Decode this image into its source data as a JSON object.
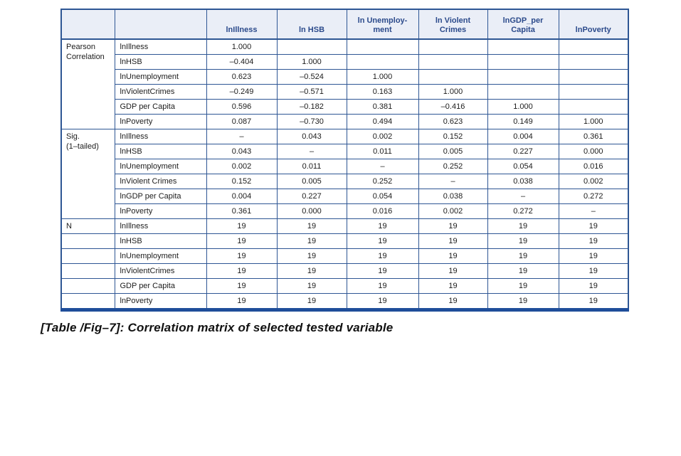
{
  "caption": "[Table /Fig–7]: Correlation matrix of selected tested variable",
  "colors": {
    "border_blue": "#2e5694",
    "thick_bottom_bar_blue": "#1f4e9a",
    "header_background": "#eaeef7",
    "header_text_blue": "#2b4a8b",
    "body_text": "#1c1c1c"
  },
  "table": {
    "column_headers": [
      "lnIllness",
      "ln HSB",
      "ln Unemploy-\nment",
      "ln Violent\nCrimes",
      "lnGDP_per\nCapita",
      "lnPoverty"
    ],
    "sections": [
      {
        "label": "Pearson\nCorrelation",
        "merged_label": true,
        "rows": [
          {
            "label": "lnIllness",
            "values": [
              "1.000",
              "",
              "",
              "",
              "",
              ""
            ]
          },
          {
            "label": "lnHSB",
            "values": [
              "–0.404",
              "1.000",
              "",
              "",
              "",
              ""
            ]
          },
          {
            "label": "lnUnemployment",
            "values": [
              "0.623",
              "–0.524",
              "1.000",
              "",
              "",
              ""
            ]
          },
          {
            "label": "lnViolentCrimes",
            "values": [
              "–0.249",
              "–0.571",
              "0.163",
              "1.000",
              "",
              ""
            ]
          },
          {
            "label": "GDP per Capita",
            "values": [
              "0.596",
              "–0.182",
              "0.381",
              "–0.416",
              "1.000",
              ""
            ]
          },
          {
            "label": "lnPoverty",
            "values": [
              "0.087",
              "–0.730",
              "0.494",
              "0.623",
              "0.149",
              "1.000"
            ]
          }
        ]
      },
      {
        "label": "Sig.\n(1–tailed)",
        "merged_label": true,
        "rows": [
          {
            "label": "lnIllness",
            "values": [
              "–",
              "0.043",
              "0.002",
              "0.152",
              "0.004",
              "0.361"
            ]
          },
          {
            "label": "lnHSB",
            "values": [
              "0.043",
              "–",
              "0.011",
              "0.005",
              "0.227",
              "0.000"
            ]
          },
          {
            "label": "lnUnemployment",
            "values": [
              "0.002",
              "0.011",
              "–",
              "0.252",
              "0.054",
              "0.016"
            ]
          },
          {
            "label": "lnViolent Crimes",
            "values": [
              "0.152",
              "0.005",
              "0.252",
              "–",
              "0.038",
              "0.002"
            ]
          },
          {
            "label": "lnGDP per Capita",
            "values": [
              "0.004",
              "0.227",
              "0.054",
              "0.038",
              "–",
              "0.272"
            ]
          },
          {
            "label": "lnPoverty",
            "values": [
              "0.361",
              "0.000",
              "0.016",
              "0.002",
              "0.272",
              "–"
            ]
          }
        ]
      },
      {
        "label": "N",
        "merged_label": false,
        "rows": [
          {
            "label": "lnIllness",
            "values": [
              "19",
              "19",
              "19",
              "19",
              "19",
              "19"
            ]
          },
          {
            "label": "lnHSB",
            "values": [
              "19",
              "19",
              "19",
              "19",
              "19",
              "19"
            ]
          },
          {
            "label": "lnUnemployment",
            "values": [
              "19",
              "19",
              "19",
              "19",
              "19",
              "19"
            ]
          },
          {
            "label": "lnViolentCrimes",
            "values": [
              "19",
              "19",
              "19",
              "19",
              "19",
              "19"
            ]
          },
          {
            "label": "GDP per Capita",
            "values": [
              "19",
              "19",
              "19",
              "19",
              "19",
              "19"
            ]
          },
          {
            "label": "lnPoverty",
            "values": [
              "19",
              "19",
              "19",
              "19",
              "19",
              "19"
            ]
          }
        ]
      }
    ]
  }
}
